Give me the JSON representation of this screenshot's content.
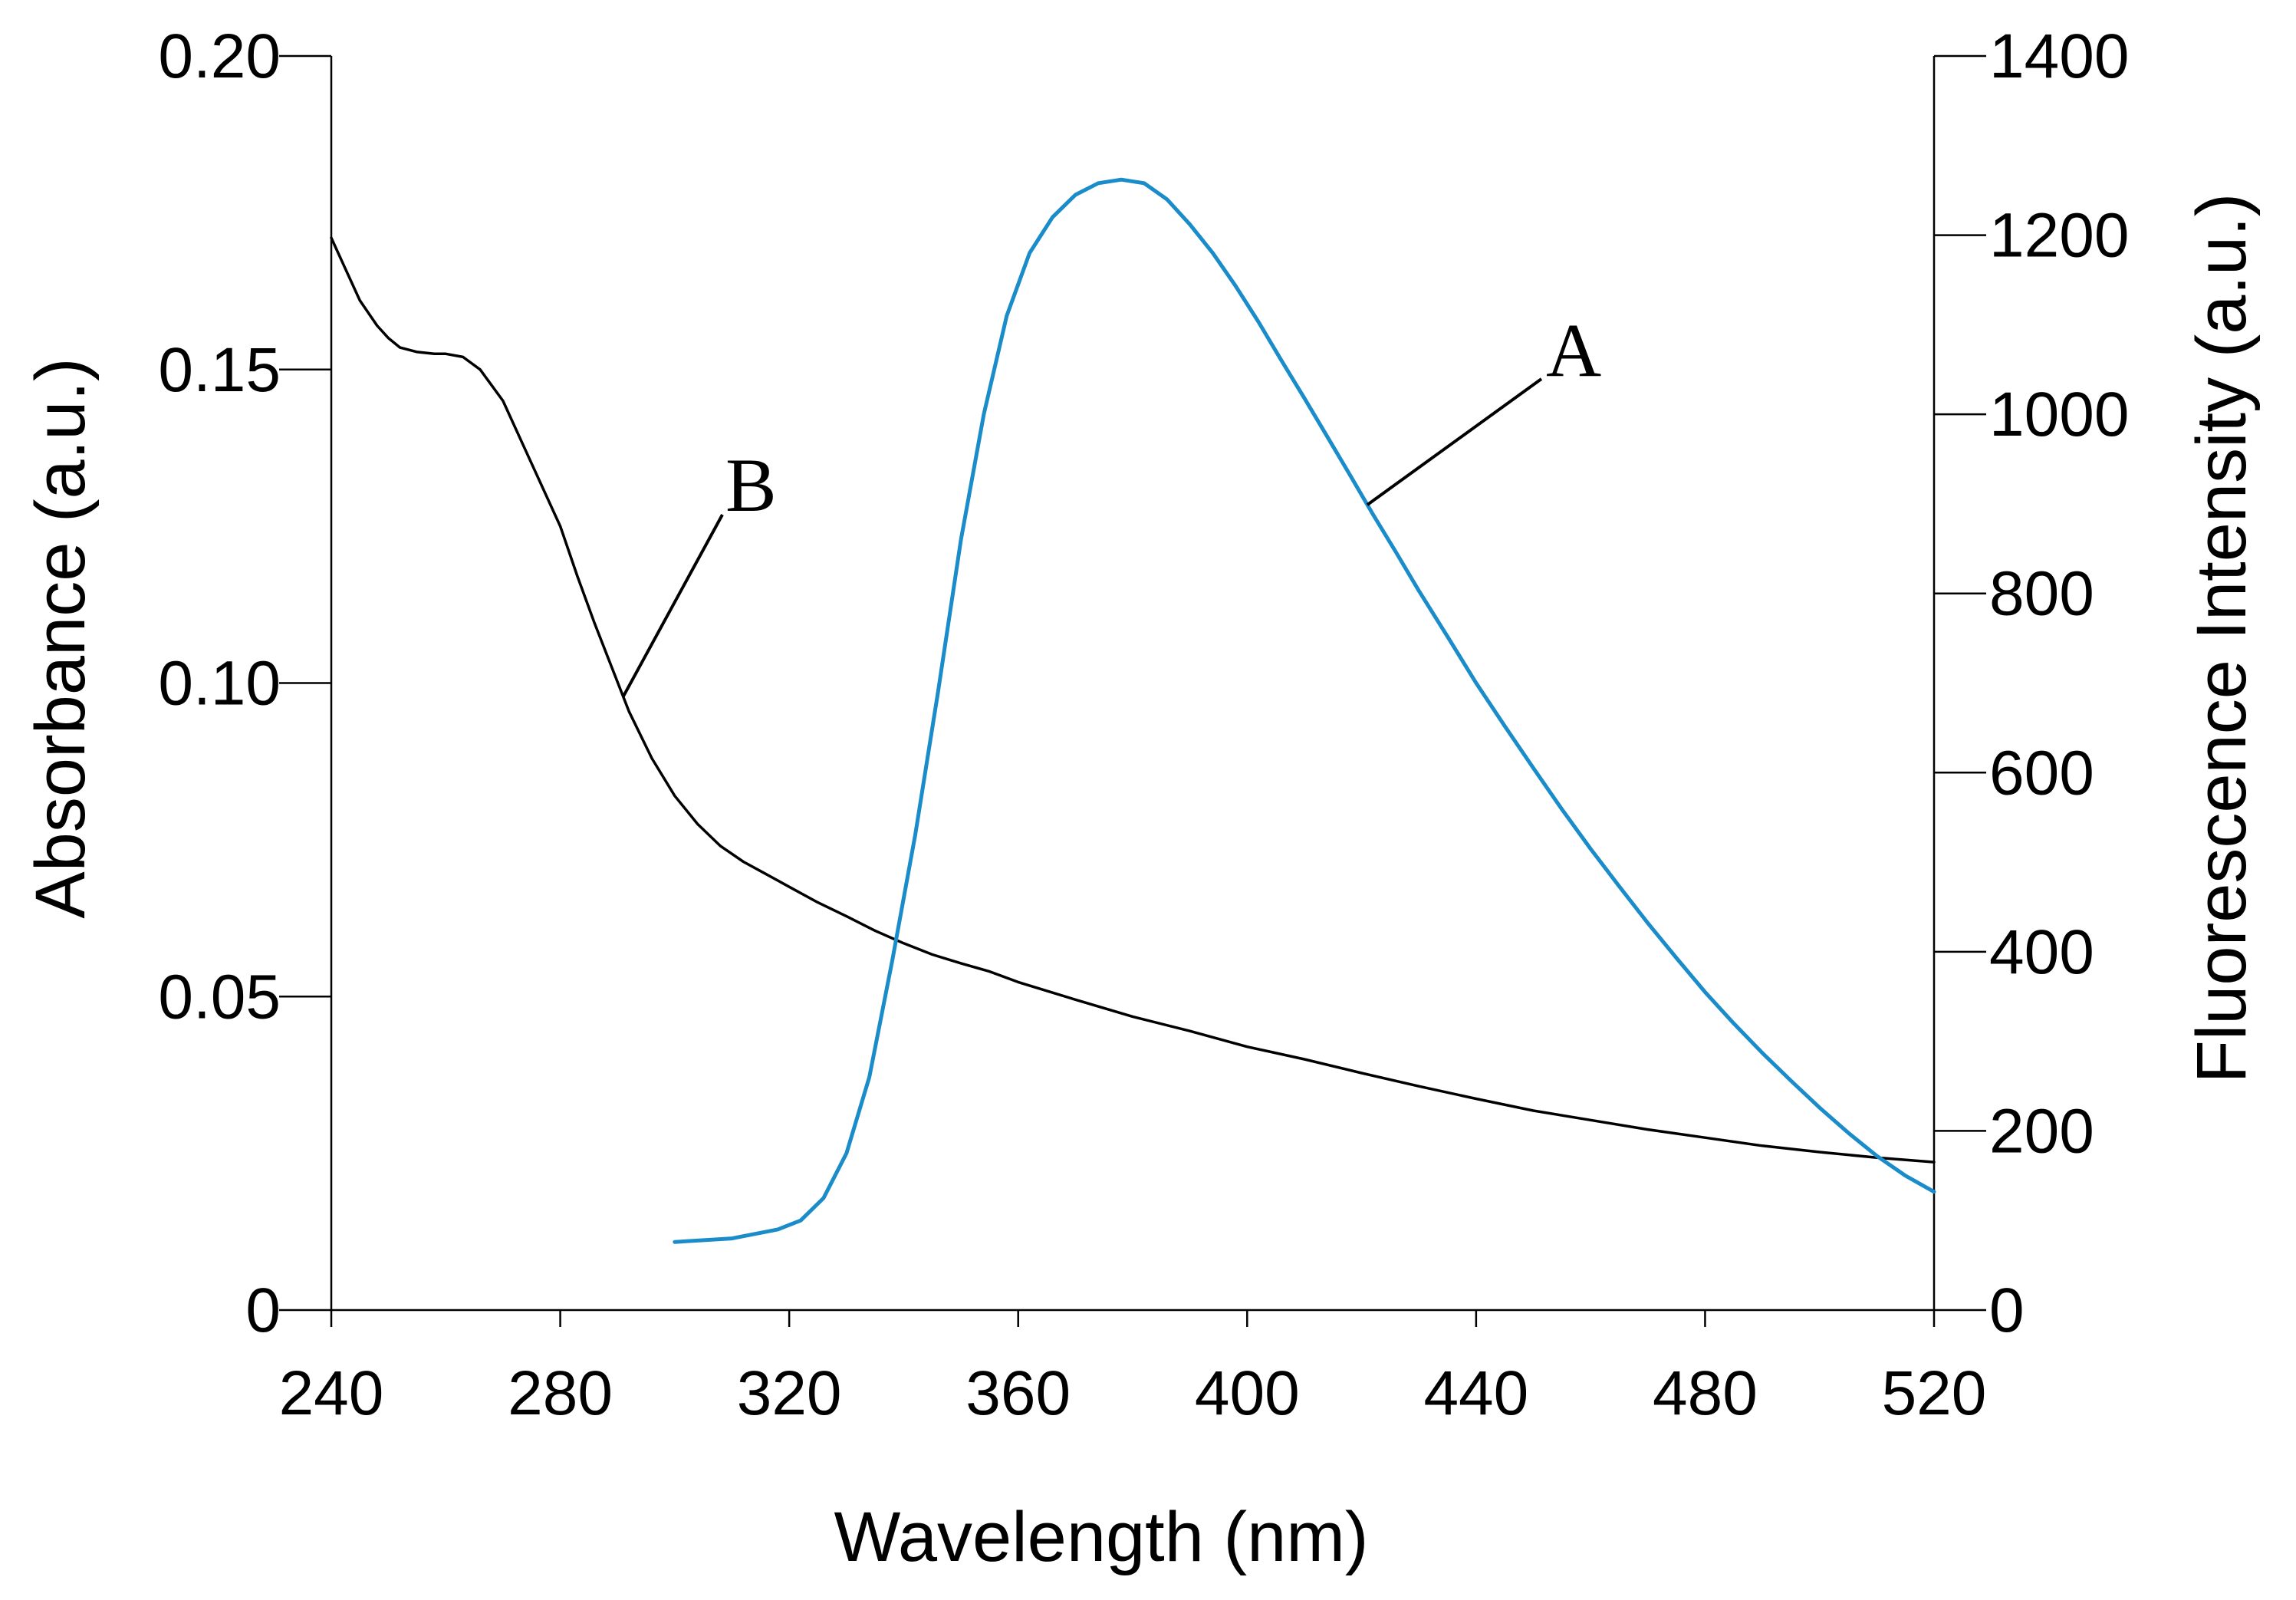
{
  "chart_data": {
    "type": "line",
    "title": "",
    "xlabel": "Wavelength (nm)",
    "ylabel_left": "Absorbance (a.u.)",
    "ylabel_right": "Fluorescence Intensity (a.u.)",
    "xlim": [
      240,
      520
    ],
    "ylim_left": [
      0,
      0.2
    ],
    "ylim_right": [
      0,
      1400
    ],
    "x_ticks": [
      "240",
      "280",
      "320",
      "360",
      "400",
      "440",
      "480",
      "520"
    ],
    "y_left_ticks": [
      "0",
      "0.05",
      "0.10",
      "0.15",
      "0.20"
    ],
    "y_right_ticks": [
      "0",
      "200",
      "400",
      "600",
      "800",
      "1000",
      "1200",
      "1400"
    ],
    "grid": false,
    "series": [
      {
        "name": "B",
        "label": "B",
        "axis": "left",
        "color": "#000000",
        "x": [
          240,
          242,
          245,
          248,
          250,
          252,
          255,
          258,
          260,
          263,
          266,
          270,
          273,
          276,
          280,
          283,
          286,
          289,
          292,
          296,
          300,
          304,
          308,
          312,
          316,
          320,
          325,
          330,
          335,
          340,
          345,
          350,
          355,
          360,
          370,
          380,
          390,
          400,
          410,
          420,
          430,
          440,
          450,
          460,
          470,
          480,
          490,
          500,
          510,
          520
        ],
        "y": [
          0.171,
          0.167,
          0.161,
          0.157,
          0.155,
          0.1535,
          0.1528,
          0.1525,
          0.1525,
          0.152,
          0.15,
          0.145,
          0.139,
          0.133,
          0.125,
          0.117,
          0.1095,
          0.1025,
          0.0955,
          0.088,
          0.082,
          0.0775,
          0.074,
          0.0715,
          0.0695,
          0.0675,
          0.065,
          0.0628,
          0.0605,
          0.0585,
          0.0567,
          0.0553,
          0.054,
          0.0523,
          0.0495,
          0.0468,
          0.0445,
          0.042,
          0.04,
          0.0378,
          0.0357,
          0.0337,
          0.0318,
          0.0303,
          0.0288,
          0.0275,
          0.0262,
          0.0252,
          0.0243,
          0.0236
        ]
      },
      {
        "name": "A",
        "label": "A",
        "axis": "right",
        "color": "#1a8cc9",
        "x": [
          300,
          310,
          318,
          322,
          326,
          330,
          334,
          338,
          342,
          346,
          350,
          354,
          358,
          362,
          366,
          370,
          374,
          378,
          382,
          386,
          390,
          394,
          398,
          402,
          406,
          410,
          414,
          418,
          422,
          426,
          430,
          435,
          440,
          445,
          450,
          455,
          460,
          465,
          470,
          475,
          480,
          485,
          490,
          495,
          500,
          505,
          510,
          515,
          520
        ],
        "y": [
          76,
          80,
          90,
          100,
          125,
          175,
          260,
          390,
          530,
          690,
          860,
          1000,
          1110,
          1180,
          1220,
          1245,
          1258,
          1262,
          1258,
          1240,
          1212,
          1180,
          1143,
          1103,
          1060,
          1018,
          975,
          932,
          888,
          846,
          803,
          752,
          700,
          652,
          605,
          559,
          515,
          473,
          432,
          393,
          355,
          320,
          287,
          256,
          226,
          198,
          172,
          150,
          132
        ]
      }
    ],
    "annotations": [
      {
        "text": "A",
        "series": "A"
      },
      {
        "text": "B",
        "series": "B"
      }
    ]
  }
}
